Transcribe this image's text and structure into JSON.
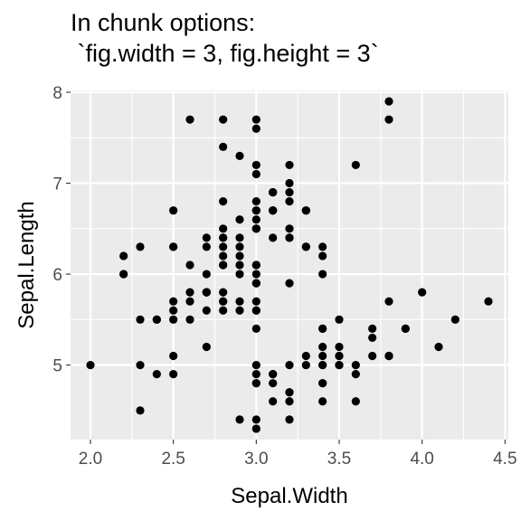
{
  "chart_data": {
    "type": "scatter",
    "title_lines": [
      "In chunk options:",
      " `fig.width = 3, fig.height = 3`"
    ],
    "xlabel": "Sepal.Width",
    "ylabel": "Sepal.Length",
    "xlim": [
      1.88,
      4.52
    ],
    "ylim": [
      4.18,
      8.02
    ],
    "xticks": [
      2.0,
      2.5,
      3.0,
      3.5,
      4.0,
      4.5
    ],
    "xtick_labels": [
      "2.0",
      "2.5",
      "3.0",
      "3.5",
      "4.0",
      "4.5"
    ],
    "yticks": [
      5,
      6,
      7,
      8
    ],
    "ytick_labels": [
      "5",
      "6",
      "7",
      "8"
    ],
    "grid": true,
    "panel_background": "#EBEBEB",
    "point_color": "#000000",
    "points": [
      [
        3.5,
        5.1
      ],
      [
        3.0,
        4.9
      ],
      [
        3.2,
        4.7
      ],
      [
        3.1,
        4.6
      ],
      [
        3.6,
        5.0
      ],
      [
        3.9,
        5.4
      ],
      [
        3.4,
        4.6
      ],
      [
        3.4,
        5.0
      ],
      [
        2.9,
        4.4
      ],
      [
        3.1,
        4.9
      ],
      [
        3.7,
        5.4
      ],
      [
        3.4,
        4.8
      ],
      [
        3.0,
        4.8
      ],
      [
        3.0,
        4.3
      ],
      [
        4.0,
        5.8
      ],
      [
        4.4,
        5.7
      ],
      [
        3.9,
        5.4
      ],
      [
        3.5,
        5.1
      ],
      [
        3.8,
        5.7
      ],
      [
        3.8,
        5.1
      ],
      [
        3.4,
        5.4
      ],
      [
        3.7,
        5.1
      ],
      [
        3.6,
        4.6
      ],
      [
        3.3,
        5.1
      ],
      [
        3.4,
        4.8
      ],
      [
        3.0,
        5.0
      ],
      [
        3.4,
        5.0
      ],
      [
        3.5,
        5.2
      ],
      [
        3.4,
        5.2
      ],
      [
        3.2,
        4.7
      ],
      [
        3.1,
        4.8
      ],
      [
        3.4,
        5.4
      ],
      [
        4.1,
        5.2
      ],
      [
        4.2,
        5.5
      ],
      [
        3.1,
        4.9
      ],
      [
        3.2,
        5.0
      ],
      [
        3.5,
        5.5
      ],
      [
        3.6,
        4.9
      ],
      [
        3.0,
        4.4
      ],
      [
        3.4,
        5.1
      ],
      [
        3.5,
        5.0
      ],
      [
        2.3,
        4.5
      ],
      [
        3.2,
        4.4
      ],
      [
        3.5,
        5.0
      ],
      [
        3.8,
        5.1
      ],
      [
        3.0,
        4.8
      ],
      [
        3.8,
        5.1
      ],
      [
        3.2,
        4.6
      ],
      [
        3.7,
        5.3
      ],
      [
        3.3,
        5.0
      ],
      [
        3.2,
        7.0
      ],
      [
        3.2,
        6.4
      ],
      [
        3.1,
        6.9
      ],
      [
        2.3,
        5.5
      ],
      [
        2.8,
        6.5
      ],
      [
        2.8,
        5.7
      ],
      [
        3.3,
        6.3
      ],
      [
        2.4,
        4.9
      ],
      [
        2.9,
        6.6
      ],
      [
        2.7,
        5.2
      ],
      [
        2.0,
        5.0
      ],
      [
        3.0,
        5.9
      ],
      [
        2.2,
        6.0
      ],
      [
        2.9,
        6.1
      ],
      [
        2.9,
        5.6
      ],
      [
        3.1,
        6.7
      ],
      [
        3.0,
        5.6
      ],
      [
        2.7,
        5.8
      ],
      [
        2.2,
        6.2
      ],
      [
        2.5,
        5.6
      ],
      [
        3.2,
        5.9
      ],
      [
        2.8,
        6.1
      ],
      [
        2.5,
        6.3
      ],
      [
        2.8,
        6.1
      ],
      [
        2.9,
        6.4
      ],
      [
        3.0,
        6.6
      ],
      [
        2.8,
        6.8
      ],
      [
        3.0,
        6.7
      ],
      [
        2.9,
        6.0
      ],
      [
        2.6,
        5.7
      ],
      [
        2.4,
        5.5
      ],
      [
        2.4,
        5.5
      ],
      [
        2.7,
        5.8
      ],
      [
        2.7,
        6.0
      ],
      [
        3.0,
        5.4
      ],
      [
        3.4,
        6.0
      ],
      [
        3.1,
        6.7
      ],
      [
        2.3,
        6.3
      ],
      [
        3.0,
        5.6
      ],
      [
        2.5,
        5.5
      ],
      [
        2.6,
        5.5
      ],
      [
        3.0,
        6.1
      ],
      [
        2.6,
        5.8
      ],
      [
        2.3,
        5.0
      ],
      [
        2.7,
        5.6
      ],
      [
        3.0,
        5.7
      ],
      [
        2.9,
        5.7
      ],
      [
        2.9,
        6.2
      ],
      [
        2.5,
        5.1
      ],
      [
        2.8,
        5.7
      ],
      [
        3.3,
        6.3
      ],
      [
        2.7,
        5.8
      ],
      [
        3.0,
        7.1
      ],
      [
        2.9,
        6.3
      ],
      [
        3.0,
        6.5
      ],
      [
        3.0,
        7.6
      ],
      [
        2.5,
        4.9
      ],
      [
        2.9,
        7.3
      ],
      [
        2.5,
        6.7
      ],
      [
        3.6,
        7.2
      ],
      [
        3.2,
        6.5
      ],
      [
        2.7,
        6.4
      ],
      [
        3.0,
        6.8
      ],
      [
        2.5,
        5.7
      ],
      [
        2.8,
        5.8
      ],
      [
        3.2,
        6.4
      ],
      [
        3.0,
        6.5
      ],
      [
        3.8,
        7.7
      ],
      [
        2.6,
        7.7
      ],
      [
        2.2,
        6.0
      ],
      [
        3.2,
        6.9
      ],
      [
        2.8,
        5.6
      ],
      [
        2.8,
        7.7
      ],
      [
        2.7,
        6.3
      ],
      [
        3.3,
        6.7
      ],
      [
        3.2,
        7.2
      ],
      [
        2.8,
        6.2
      ],
      [
        3.0,
        6.1
      ],
      [
        2.8,
        6.4
      ],
      [
        3.0,
        7.2
      ],
      [
        2.8,
        7.4
      ],
      [
        3.8,
        7.9
      ],
      [
        2.8,
        6.4
      ],
      [
        2.8,
        6.3
      ],
      [
        2.6,
        6.1
      ],
      [
        3.0,
        7.7
      ],
      [
        3.4,
        6.3
      ],
      [
        3.1,
        6.4
      ],
      [
        3.0,
        6.0
      ],
      [
        3.1,
        6.9
      ],
      [
        3.1,
        6.7
      ],
      [
        3.1,
        6.9
      ],
      [
        2.7,
        5.8
      ],
      [
        3.2,
        6.8
      ],
      [
        3.3,
        6.7
      ],
      [
        3.0,
        6.7
      ],
      [
        2.5,
        6.3
      ],
      [
        3.0,
        6.5
      ],
      [
        3.4,
        6.2
      ],
      [
        3.0,
        5.9
      ]
    ]
  }
}
